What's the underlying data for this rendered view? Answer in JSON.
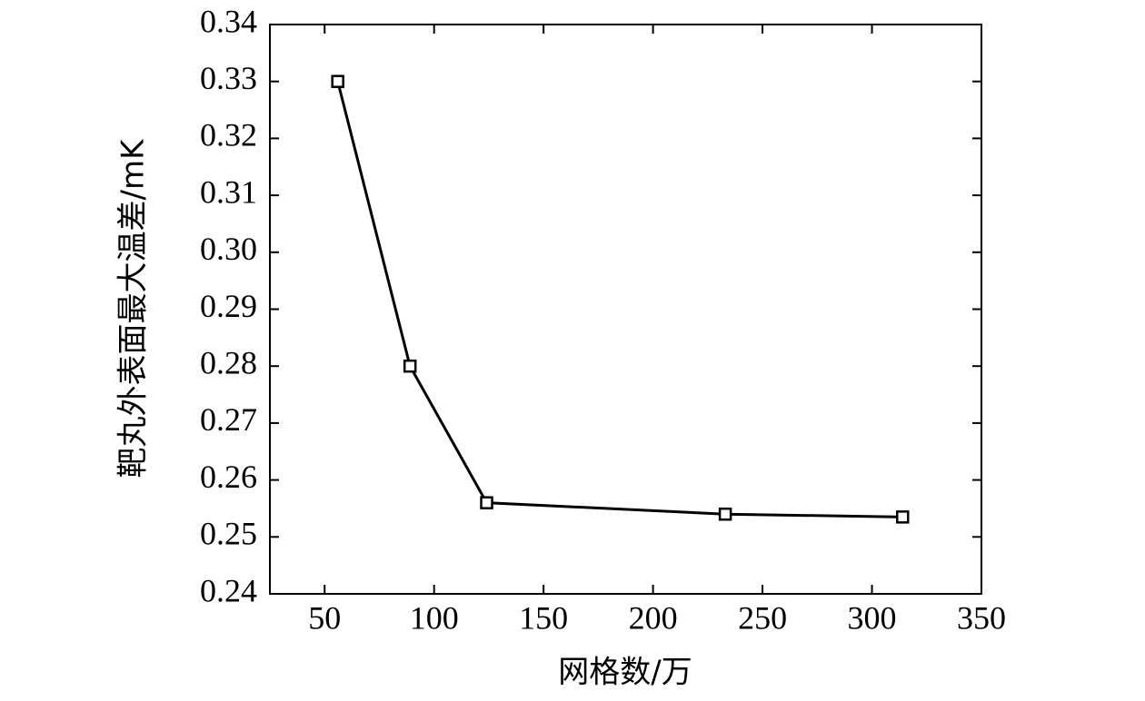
{
  "chart_data": {
    "type": "line",
    "x_label": "网格数/万",
    "y_label": "靶丸外表面最大温差/mK",
    "x": [
      56,
      89,
      124,
      233,
      314
    ],
    "series": [
      {
        "color": "#000000",
        "values": [
          0.33,
          0.28,
          0.256,
          0.254,
          0.2535
        ]
      }
    ],
    "xlim": [
      25,
      350
    ],
    "xticks": [
      50,
      100,
      150,
      200,
      250,
      300,
      350
    ],
    "ylim": [
      0.24,
      0.34
    ],
    "yticks": [
      0.24,
      0.25,
      0.26,
      0.27,
      0.28,
      0.29,
      {
        "value": 0.3,
        "label": "0.30"
      },
      0.31,
      0.32,
      0.33,
      0.34
    ],
    "grid": false
  }
}
